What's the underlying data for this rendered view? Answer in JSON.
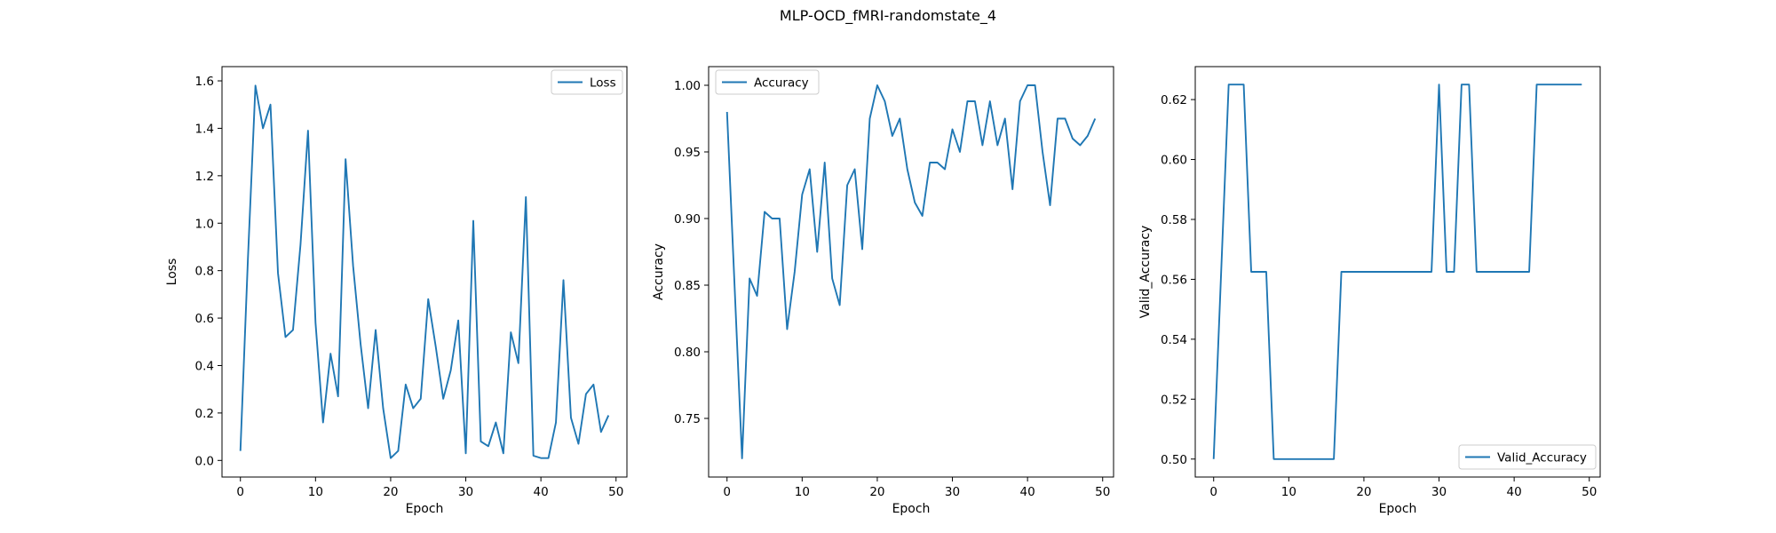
{
  "figure": {
    "title": "MLP-OCD_fMRI-randomstate_4"
  },
  "chart_data": [
    {
      "type": "line",
      "xlabel": "Epoch",
      "ylabel": "Loss",
      "legend": "upper right",
      "xlim": [
        -2.45,
        51.45
      ],
      "ylim": [
        -0.07,
        1.66
      ],
      "xticks": [
        0,
        10,
        20,
        30,
        40,
        50
      ],
      "yticks": [
        0.0,
        0.2,
        0.4,
        0.6,
        0.8,
        1.0,
        1.2,
        1.4,
        1.6
      ],
      "ytick_labels": [
        "0.0",
        "0.2",
        "0.4",
        "0.6",
        "0.8",
        "1.0",
        "1.2",
        "1.4",
        "1.6"
      ],
      "series": [
        {
          "name": "Loss",
          "color": "#1f77b4",
          "x": [
            0,
            1,
            2,
            3,
            4,
            5,
            6,
            7,
            8,
            9,
            10,
            11,
            12,
            13,
            14,
            15,
            16,
            17,
            18,
            19,
            20,
            21,
            22,
            23,
            24,
            25,
            26,
            27,
            28,
            29,
            30,
            31,
            32,
            33,
            34,
            35,
            36,
            37,
            38,
            39,
            40,
            41,
            42,
            43,
            44,
            45,
            46,
            47,
            48,
            49
          ],
          "values": [
            0.04,
            0.85,
            1.58,
            1.4,
            1.5,
            0.79,
            0.52,
            0.55,
            0.91,
            1.39,
            0.58,
            0.16,
            0.45,
            0.27,
            1.27,
            0.82,
            0.49,
            0.22,
            0.55,
            0.22,
            0.01,
            0.04,
            0.32,
            0.22,
            0.26,
            0.68,
            0.48,
            0.26,
            0.38,
            0.59,
            0.03,
            1.01,
            0.08,
            0.06,
            0.16,
            0.03,
            0.54,
            0.41,
            1.11,
            0.02,
            0.01,
            0.01,
            0.16,
            0.76,
            0.18,
            0.07,
            0.28,
            0.32,
            0.12,
            0.19
          ]
        }
      ]
    },
    {
      "type": "line",
      "xlabel": "Epoch",
      "ylabel": "Accuracy",
      "legend": "upper left",
      "xlim": [
        -2.45,
        51.45
      ],
      "ylim": [
        0.706,
        1.014
      ],
      "xticks": [
        0,
        10,
        20,
        30,
        40,
        50
      ],
      "yticks": [
        0.75,
        0.8,
        0.85,
        0.9,
        0.95,
        1.0
      ],
      "ytick_labels": [
        "0.75",
        "0.80",
        "0.85",
        "0.90",
        "0.95",
        "1.00"
      ],
      "series": [
        {
          "name": "Accuracy",
          "color": "#1f77b4",
          "x": [
            0,
            1,
            2,
            3,
            4,
            5,
            6,
            7,
            8,
            9,
            10,
            11,
            12,
            13,
            14,
            15,
            16,
            17,
            18,
            19,
            20,
            21,
            22,
            23,
            24,
            25,
            26,
            27,
            28,
            29,
            30,
            31,
            32,
            33,
            34,
            35,
            36,
            37,
            38,
            39,
            40,
            41,
            42,
            43,
            44,
            45,
            46,
            47,
            48,
            49
          ],
          "values": [
            0.98,
            0.85,
            0.72,
            0.855,
            0.842,
            0.905,
            0.9,
            0.9,
            0.817,
            0.86,
            0.918,
            0.937,
            0.875,
            0.942,
            0.855,
            0.835,
            0.925,
            0.937,
            0.877,
            0.975,
            1.0,
            0.988,
            0.962,
            0.975,
            0.937,
            0.912,
            0.902,
            0.942,
            0.942,
            0.937,
            0.967,
            0.95,
            0.988,
            0.988,
            0.955,
            0.988,
            0.955,
            0.975,
            0.922,
            0.988,
            1.0,
            1.0,
            0.95,
            0.91,
            0.975,
            0.975,
            0.96,
            0.955,
            0.962,
            0.975
          ]
        }
      ]
    },
    {
      "type": "line",
      "xlabel": "Epoch",
      "ylabel": "Valid_Accuracy",
      "legend": "lower right",
      "xlim": [
        -2.45,
        51.45
      ],
      "ylim": [
        0.494,
        0.631
      ],
      "xticks": [
        0,
        10,
        20,
        30,
        40,
        50
      ],
      "yticks": [
        0.5,
        0.52,
        0.54,
        0.56,
        0.58,
        0.6,
        0.62
      ],
      "ytick_labels": [
        "0.50",
        "0.52",
        "0.54",
        "0.56",
        "0.58",
        "0.60",
        "0.62"
      ],
      "series": [
        {
          "name": "Valid_Accuracy",
          "color": "#1f77b4",
          "x": [
            0,
            1,
            2,
            3,
            4,
            5,
            6,
            7,
            8,
            9,
            10,
            11,
            12,
            13,
            14,
            15,
            16,
            17,
            18,
            19,
            20,
            21,
            22,
            23,
            24,
            25,
            26,
            27,
            28,
            29,
            30,
            31,
            32,
            33,
            34,
            35,
            36,
            37,
            38,
            39,
            40,
            41,
            42,
            43,
            44,
            45,
            46,
            47,
            48,
            49
          ],
          "values": [
            0.5,
            0.5625,
            0.625,
            0.625,
            0.625,
            0.5625,
            0.5625,
            0.5625,
            0.5,
            0.5,
            0.5,
            0.5,
            0.5,
            0.5,
            0.5,
            0.5,
            0.5,
            0.5625,
            0.5625,
            0.5625,
            0.5625,
            0.5625,
            0.5625,
            0.5625,
            0.5625,
            0.5625,
            0.5625,
            0.5625,
            0.5625,
            0.5625,
            0.625,
            0.5625,
            0.5625,
            0.625,
            0.625,
            0.5625,
            0.5625,
            0.5625,
            0.5625,
            0.5625,
            0.5625,
            0.5625,
            0.5625,
            0.625,
            0.625,
            0.625,
            0.625,
            0.625,
            0.625,
            0.625
          ]
        }
      ]
    }
  ]
}
